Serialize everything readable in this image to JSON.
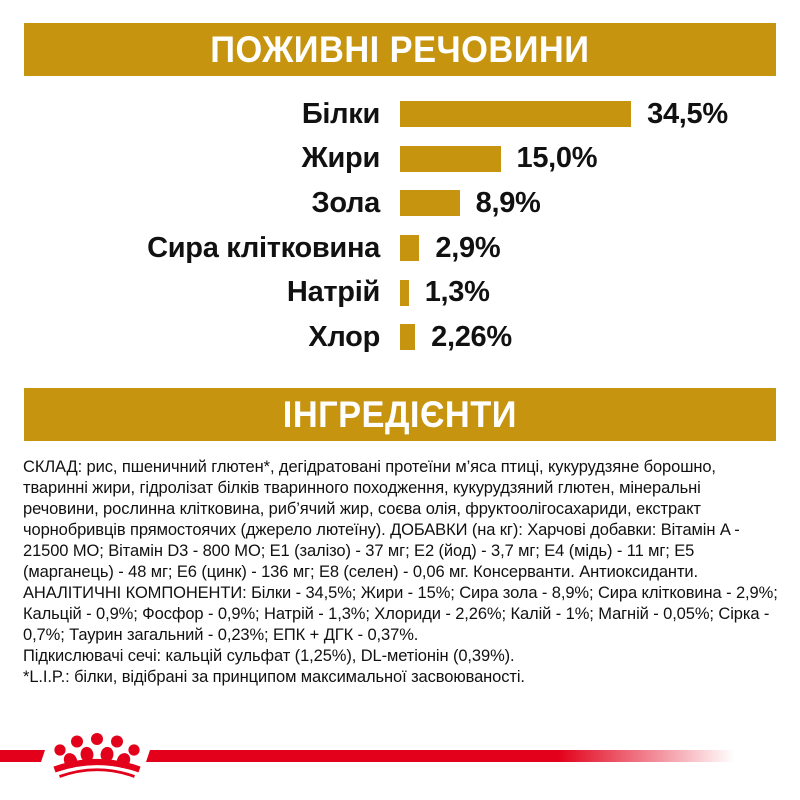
{
  "colors": {
    "gold": "#c6940e",
    "red": "#e2001a",
    "text": "#111111",
    "banner_text": "#ffffff"
  },
  "nutrients_section": {
    "title": "ПОЖИВНІ РЕЧОВИНИ"
  },
  "chart_data": {
    "type": "bar",
    "orientation": "horizontal",
    "title": "ПОЖИВНІ РЕЧОВИНИ",
    "categories": [
      "Білки",
      "Жири",
      "Зола",
      "Сира клітковина",
      "Натрій",
      "Хлор"
    ],
    "values": [
      34.5,
      15.0,
      8.9,
      2.9,
      1.3,
      2.26
    ],
    "value_labels": [
      "34,5%",
      "15,0%",
      "8,9%",
      "2,9%",
      "1,3%",
      "2,26%"
    ],
    "unit": "%",
    "xlim": [
      0,
      40
    ],
    "grid": false,
    "bar_color": "#c6940e",
    "value_label_position": "right-of-bar",
    "category_label_position": "left-of-bar"
  },
  "ingredients_section": {
    "title": "ІНГРЕДІЄНТИ",
    "composition": "СКЛАД: рис, пшеничний глютен*, дегідратовані протеїни м’яса птиці, кукурудзяне борошно, тваринні жири, гідролізат білків тваринного походження, кукурудзяний глютен, мінеральні речовини, рослинна клітковина, риб’ячий жир, соєва олія, фруктоолігосахариди, екстракт чорнобривців прямостоячих (джерело лютеїну). ДОБАВКИ (на кг): Харчові добавки: Вітамін A - 21500 МО; Вітамін D3 - 800 МО; Е1 (залізо) - 37 мг; Е2 (йод) - 3,7 мг; Е4 (мідь) - 11 мг; Е5 (марганець) - 48 мг; Е6 (цинк) - 136 мг; Е8 (селен) - 0,06 мг. Консерванти. Антиоксиданти. АНАЛІТИЧНІ КОМПОНЕНТИ: Білки - 34,5%; Жири - 15%; Сира зола - 8,9%; Сира клітковина - 2,9%; Кальцій - 0,9%; Фосфор - 0,9%; Натрій - 1,3%; Хлориди - 2,26%; Калій - 1%; Магній - 0,05%; Сірка - 0,7%; Таурин загальний - 0,23%; ЕПК + ДГК - 0,37%.",
    "acidifiers": "Підкислювачі сечі: кальцій сульфат (1,25%), DL-метіонін (0,39%).",
    "lip_note": "*L.I.P.: білки, відібрані за принципом максимальної засвоюваності."
  },
  "footer": {
    "logo": "royal-canin-crown"
  }
}
